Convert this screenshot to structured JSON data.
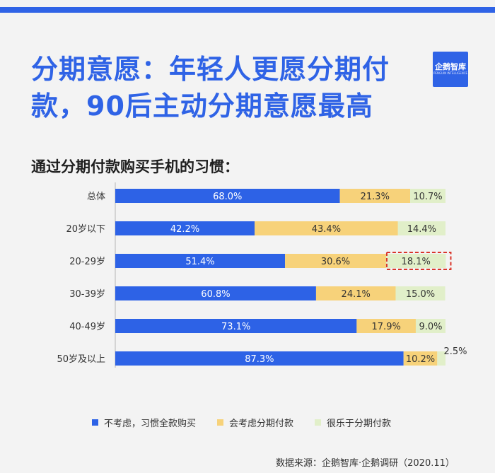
{
  "headline": "分期意愿：年轻人更愿分期付款，90后主动分期意愿最高",
  "logo": {
    "text": "企鹅智库",
    "sub": "PENGUIN INTELLIGENCE"
  },
  "source": "数据来源：企鹅智库·企鹅调研（2020.11）",
  "colors": {
    "accent": "#2f63e6",
    "series1": "#2d62e6",
    "series2": "#f7d27a",
    "series3": "#e1efc9",
    "highlight": "#d9352a"
  },
  "chart_data": {
    "type": "bar",
    "orientation": "horizontal",
    "stacked": true,
    "title": "通过分期付款购买手机的习惯：",
    "categories": [
      "总体",
      "20岁以下",
      "20-29岁",
      "30-39岁",
      "40-49岁",
      "50岁及以上"
    ],
    "series": [
      {
        "name": "不考虑，习惯全款购买",
        "values": [
          68.0,
          42.2,
          51.4,
          60.8,
          73.1,
          87.3
        ]
      },
      {
        "name": "会考虑分期付款",
        "values": [
          21.3,
          43.4,
          30.6,
          24.1,
          17.9,
          10.2
        ]
      },
      {
        "name": "很乐于分期付款",
        "values": [
          10.7,
          14.4,
          18.1,
          15.0,
          9.0,
          2.5
        ]
      }
    ],
    "value_labels": [
      [
        "68.0%",
        "21.3%",
        "10.7%"
      ],
      [
        "42.2%",
        "43.4%",
        "14.4%"
      ],
      [
        "51.4%",
        "30.6%",
        "18.1%"
      ],
      [
        "60.8%",
        "24.1%",
        "15.0%"
      ],
      [
        "73.1%",
        "17.9%",
        "9.0%"
      ],
      [
        "87.3%",
        "10.2%",
        "2.5%"
      ]
    ],
    "xlim": [
      0,
      100
    ],
    "legend_position": "bottom",
    "highlight": {
      "category": "20-29岁",
      "series": "很乐于分期付款"
    }
  }
}
